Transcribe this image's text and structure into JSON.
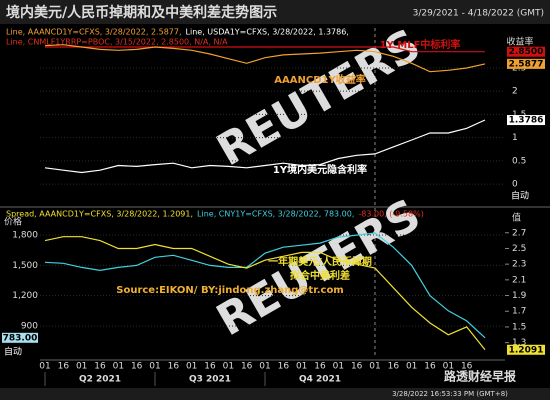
{
  "header": {
    "title": "境内美元/人民币掉期和及中美利差走势图示",
    "date_range": "3/29/2021 - 4/18/2022 (GMT)",
    "status": "3/28/2022 16:53:33 PM (GMT+8)",
    "logo": "路透财经早报",
    "watermark": "REUTERS"
  },
  "chart_data": [
    {
      "type": "line",
      "legend": [
        {
          "text": "Line, AAANCD1Y=CFXS, 3/28/2022, 2.5877,",
          "color": "#f0a030"
        },
        {
          "text": "Line, USDA1Y=CFXS, 3/28/2022, 1.3786,",
          "color": "#ffffff"
        },
        {
          "text": "Line, CNMLF1YRRP=PBOC, 3/15/2022, 2.8500, N/A, N/A",
          "color": "#e03020"
        }
      ],
      "y_axis_label": "收益率",
      "auto_label": "自动",
      "ylim": [
        -0.45,
        3.36
      ],
      "yticks": [
        0,
        0.5,
        1,
        1.5,
        2,
        2.5
      ],
      "grid": true,
      "series": [
        {
          "label": "1Y MLF中标利率",
          "color": "#d01010",
          "last_value_label": "2.8500",
          "values": [
            2.95,
            2.95,
            2.95,
            2.95,
            2.95,
            2.95,
            2.95,
            2.95,
            2.95,
            2.95,
            2.95,
            2.95,
            2.95,
            2.95,
            2.95,
            2.95,
            2.95,
            2.95,
            2.95,
            2.95,
            2.85,
            2.85,
            2.85,
            2.85,
            2.85
          ]
        },
        {
          "label": "AAANCD1Y收益率",
          "color": "#f0a030",
          "values": [
            2.98,
            3.0,
            2.95,
            2.9,
            2.88,
            2.9,
            2.95,
            2.92,
            2.88,
            2.8,
            2.7,
            2.6,
            2.72,
            2.78,
            2.8,
            2.82,
            2.85,
            2.88,
            2.85,
            2.75,
            2.6,
            2.42,
            2.45,
            2.5,
            2.5877
          ]
        },
        {
          "label": "1Y境内美元隐含利率",
          "color": "#ffffff",
          "values": [
            0.35,
            0.3,
            0.25,
            0.3,
            0.4,
            0.38,
            0.42,
            0.45,
            0.35,
            0.4,
            0.38,
            0.35,
            0.4,
            0.45,
            0.4,
            0.42,
            0.55,
            0.62,
            0.65,
            0.8,
            0.95,
            1.1,
            1.1,
            1.2,
            1.3786
          ]
        }
      ]
    },
    {
      "type": "line",
      "legend": [
        {
          "text": "Spread, AAANCD1Y=CFXS, 3/28/2022, 1.2091,",
          "color": "#f0e030"
        },
        {
          "text": "Line, CNY1Y=CFXS, 3/28/2022, 783.00,",
          "color": "#40d0e0"
        },
        {
          "text": "-83.00, (-9.58%)",
          "color": "#e03020"
        }
      ],
      "y_axis_label": "价格",
      "y2_axis_label": "值",
      "auto_label": "自动",
      "annotations": [
        {
          "text": "一年期美元/人民币掉期",
          "color": "#f0e030"
        },
        {
          "text": "拟合中美利差",
          "color": "#f0e030"
        },
        {
          "text": "Source:EIKON/ BY:jindong.zhang@tr.com",
          "color": "#f0b030"
        }
      ],
      "categories": [
        "01",
        "16",
        "01",
        "16",
        "01",
        "16",
        "01",
        "16",
        "01",
        "16",
        "01",
        "16",
        "01",
        "16",
        "01",
        "16",
        "01",
        "16",
        "01",
        "16",
        "01",
        "16",
        "01",
        "16",
        null
      ],
      "quarters": [
        "Q2 2021",
        "Q3 2021",
        "Q4 2021"
      ],
      "ylim": [
        593,
        2048
      ],
      "yticks": [
        {
          "value": 900,
          "label": "900"
        },
        {
          "value": 1200,
          "label": "1,200"
        },
        {
          "value": 1500,
          "label": "1,500"
        },
        {
          "value": 1800,
          "label": "1,800"
        }
      ],
      "y2lim": [
        1.117,
        2.99
      ],
      "y2ticks": [
        1.3,
        1.5,
        1.7,
        1.9,
        2.1,
        2.3,
        2.5,
        2.7
      ],
      "grid": true,
      "series": [
        {
          "color": "#40d0e0",
          "axis": "y",
          "last_value_label": "783.00",
          "values": [
            1530,
            1520,
            1480,
            1450,
            1480,
            1500,
            1580,
            1600,
            1550,
            1500,
            1480,
            1480,
            1620,
            1680,
            1700,
            1720,
            1780,
            1800,
            1820,
            1680,
            1500,
            1200,
            1050,
            950,
            783
          ]
        },
        {
          "color": "#f0e030",
          "axis": "y2",
          "values": [
            2.6,
            2.65,
            2.65,
            2.6,
            2.5,
            2.5,
            2.55,
            2.5,
            2.5,
            2.4,
            2.3,
            2.25,
            2.35,
            2.4,
            2.45,
            2.45,
            2.35,
            2.3,
            2.25,
            2.0,
            1.75,
            1.55,
            1.4,
            1.5,
            1.2091
          ]
        }
      ]
    }
  ]
}
